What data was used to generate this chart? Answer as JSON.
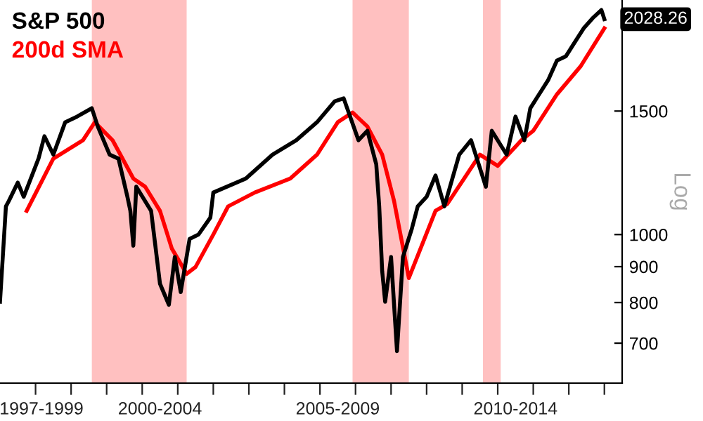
{
  "chart_data": {
    "type": "line",
    "ylabel": "Log",
    "log": true,
    "grid": false,
    "legend": "top left",
    "marker": "none",
    "line_style": "solid",
    "xlim": [
      "1998-01",
      "2015-07"
    ],
    "ylim": [
      614,
      2160
    ],
    "xticks": [
      {
        "value": "1999-01",
        "label": null
      },
      {
        "value": "2000-01",
        "label": null
      },
      {
        "value": "2001-01",
        "label": null
      },
      {
        "value": "2002-01",
        "label": null
      },
      {
        "value": "2003-01",
        "label": null
      },
      {
        "value": "2004-01",
        "label": null
      },
      {
        "value": "2005-01",
        "label": null
      },
      {
        "value": "2006-01",
        "label": null
      },
      {
        "value": "2007-01",
        "label": null
      },
      {
        "value": "2008-01",
        "label": null
      },
      {
        "value": "2009-01",
        "label": null
      },
      {
        "value": "2010-01",
        "label": null
      },
      {
        "value": "2011-01",
        "label": null
      },
      {
        "value": "2012-01",
        "label": null
      },
      {
        "value": "2013-01",
        "label": null
      },
      {
        "value": "2014-01",
        "label": null
      },
      {
        "value": "2015-01",
        "label": null
      },
      {
        "value": "1999-03",
        "label": "1997-1999"
      },
      {
        "value": "2002-07",
        "label": "2000-2004"
      },
      {
        "value": "2007-07",
        "label": "2005-2009"
      },
      {
        "value": "2012-07",
        "label": "2010-2014"
      }
    ],
    "yticks": [
      700,
      800,
      900,
      1000,
      1500
    ],
    "bands": [
      {
        "axis": "x",
        "from": "2000-08",
        "to": "2003-04",
        "color": "#ffc0c0"
      },
      {
        "axis": "x",
        "from": "2007-12",
        "to": "2009-07",
        "color": "#ffc0c0"
      },
      {
        "axis": "x",
        "from": "2011-08",
        "to": "2012-02",
        "color": "#ffc0c0"
      }
    ],
    "annotations": [
      {
        "text": "2028.26",
        "x": "2015-01",
        "y": 2028
      }
    ],
    "series": [
      {
        "name": "S&P 500",
        "color": "#000000",
        "x": [
          "1998-01",
          "1998-03",
          "1998-04",
          "1998-07",
          "1998-09",
          "1999-02",
          "1999-04",
          "1999-07",
          "1999-11",
          "2000-03",
          "2000-08",
          "2000-10",
          "2001-02",
          "2001-05",
          "2001-08",
          "2001-09",
          "2001-10",
          "2001-11",
          "2002-04",
          "2002-07",
          "2002-10",
          "2002-12",
          "2003-02",
          "2003-05",
          "2003-08",
          "2003-12",
          "2004-01",
          "2004-12",
          "2005-09",
          "2006-05",
          "2006-12",
          "2007-06",
          "2007-09",
          "2008-02",
          "2008-05",
          "2008-08",
          "2008-09",
          "2008-10",
          "2008-11",
          "2009-01",
          "2009-03",
          "2009-05",
          "2009-08",
          "2009-10",
          "2010-01",
          "2010-04",
          "2010-07",
          "2010-12",
          "2011-04",
          "2011-09",
          "2011-11",
          "2012-04",
          "2012-07",
          "2012-10",
          "2012-12",
          "2013-06",
          "2013-09",
          "2013-12",
          "2014-03",
          "2014-06",
          "2014-09",
          "2014-12",
          "2015-01"
        ],
        "values": [
          802,
          1097,
          1117,
          1186,
          1132,
          1283,
          1381,
          1300,
          1446,
          1473,
          1514,
          1426,
          1300,
          1283,
          1132,
          1081,
          964,
          1170,
          1081,
          851,
          794,
          929,
          828,
          986,
          1000,
          1057,
          1148,
          1202,
          1300,
          1363,
          1446,
          1549,
          1564,
          1363,
          1406,
          1259,
          1097,
          887,
          802,
          929,
          682,
          929,
          1019,
          1097,
          1132,
          1214,
          1097,
          1300,
          1363,
          1170,
          1406,
          1300,
          1473,
          1363,
          1514,
          1660,
          1771,
          1795,
          1880,
          1968,
          2034,
          2090,
          2028
        ]
      },
      {
        "name": "200d SMA",
        "color": "#ff0000",
        "x": [
          "1998-10",
          "1999-07",
          "2000-05",
          "2000-09",
          "2001-03",
          "2001-10",
          "2002-02",
          "2002-07",
          "2002-11",
          "2003-04",
          "2003-07",
          "2004-01",
          "2004-06",
          "2005-03",
          "2006-03",
          "2006-12",
          "2007-07",
          "2007-12",
          "2008-05",
          "2008-10",
          "2009-02",
          "2009-07",
          "2010-04",
          "2010-08",
          "2011-07",
          "2012-01",
          "2012-09",
          "2013-01",
          "2013-09",
          "2014-05",
          "2015-01"
        ],
        "values": [
          1081,
          1283,
          1363,
          1446,
          1363,
          1202,
          1170,
          1081,
          955,
          879,
          899,
          1000,
          1097,
          1148,
          1202,
          1300,
          1446,
          1493,
          1426,
          1300,
          1117,
          867,
          1081,
          1106,
          1300,
          1253,
          1363,
          1406,
          1585,
          1738,
          1968
        ]
      }
    ]
  }
}
